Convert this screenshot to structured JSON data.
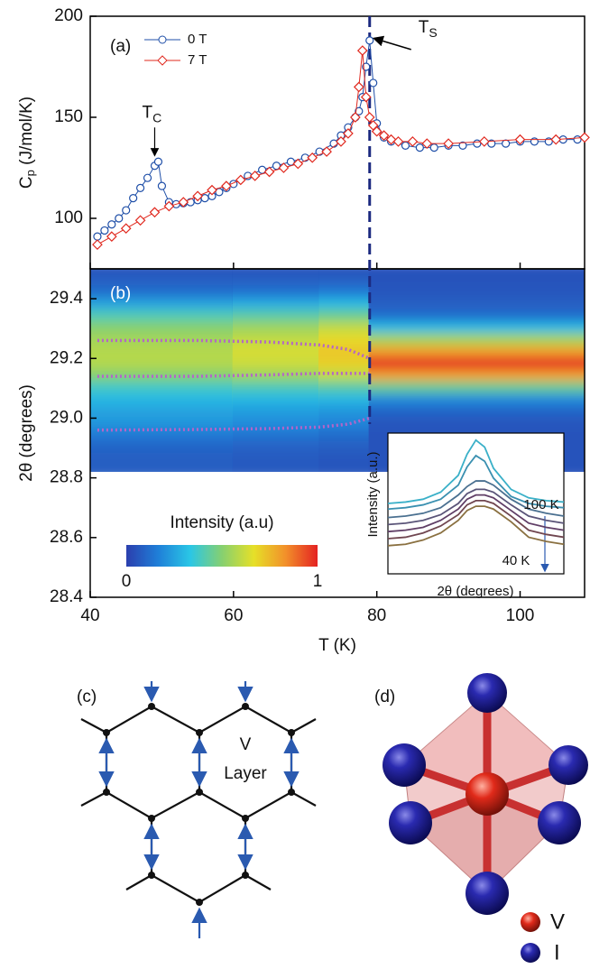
{
  "chart_data": [
    {
      "type": "line",
      "panel_label": "(a)",
      "ylabel": {
        "main": "C",
        "sub": "p",
        "rest": " (J/mol/K)"
      },
      "xlim": [
        40,
        109
      ],
      "xticks": [
        40,
        60,
        80,
        100
      ],
      "ylim": [
        75,
        200
      ],
      "yticks": [
        100,
        150,
        200
      ],
      "vline": 79,
      "annotations": [
        {
          "text": "T",
          "sub": "C",
          "x": 49,
          "y": 128
        },
        {
          "text": "T",
          "sub": "S",
          "x": 79,
          "y": 188
        }
      ],
      "series": [
        {
          "name": "0 T",
          "color": "#1f4fa8",
          "marker": "circle",
          "x": [
            41,
            42,
            43,
            44,
            45,
            46,
            47,
            48,
            49,
            49.5,
            50,
            51,
            52,
            53,
            54,
            55,
            56,
            57,
            58,
            59,
            60,
            62,
            64,
            66,
            68,
            70,
            72,
            74,
            75,
            76,
            77,
            77.5,
            78,
            78.5,
            79,
            79.5,
            80,
            81,
            82,
            84,
            86,
            88,
            90,
            92,
            94,
            96,
            98,
            100,
            102,
            104,
            106,
            108
          ],
          "values": [
            91,
            94,
            97,
            100,
            104,
            110,
            115,
            120,
            126,
            128,
            116,
            108,
            107,
            107.5,
            108,
            109,
            110,
            111,
            113,
            115,
            117,
            121,
            124,
            126,
            128,
            130,
            133,
            137,
            141,
            145,
            150,
            153,
            160,
            175,
            188,
            167,
            147,
            140,
            138,
            136,
            135,
            135,
            136,
            136,
            137,
            137,
            137,
            138,
            138,
            138,
            139,
            139
          ]
        },
        {
          "name": "7 T",
          "color": "#e0281e",
          "marker": "diamond",
          "x": [
            41,
            43,
            45,
            47,
            49,
            51,
            53,
            55,
            57,
            59,
            61,
            63,
            65,
            67,
            69,
            71,
            73,
            75,
            76,
            77,
            77.5,
            78,
            78.5,
            79,
            79.5,
            80,
            81,
            82,
            83,
            85,
            87,
            90,
            95,
            100,
            105,
            109
          ],
          "values": [
            87,
            91,
            95,
            99,
            103,
            106,
            108,
            111,
            114,
            116,
            119,
            121,
            123,
            125,
            127,
            130,
            133,
            138,
            142,
            150,
            165,
            183,
            160,
            150,
            146,
            143,
            141,
            139,
            138,
            138,
            137,
            137,
            138,
            139,
            139,
            140
          ]
        }
      ]
    },
    {
      "type": "heatmap",
      "panel_label": "(b)",
      "xlabel": "T (K)",
      "ylabel": "2θ (degrees)",
      "xlim": [
        40,
        109
      ],
      "xticks": [
        40,
        60,
        80,
        100
      ],
      "ylim": [
        28.4,
        29.5
      ],
      "yticks": [
        28.4,
        28.6,
        28.8,
        {
          "value": 29.0,
          "label": "29.0"
        },
        29.2,
        29.4
      ],
      "x_edges": [
        40,
        60,
        72,
        79,
        109
      ],
      "y": [
        29.48,
        29.44,
        29.4,
        29.36,
        29.32,
        29.28,
        29.24,
        29.2,
        29.16,
        29.12,
        29.08,
        29.04,
        29.0,
        28.96,
        28.92,
        28.88,
        28.84
      ],
      "z": [
        [
          0.05,
          0.08,
          0.12,
          0.25,
          0.4,
          0.5,
          0.55,
          0.58,
          0.58,
          0.5,
          0.38,
          0.3,
          0.25,
          0.22,
          0.15,
          0.1,
          0.08
        ],
        [
          0.05,
          0.08,
          0.13,
          0.27,
          0.42,
          0.54,
          0.6,
          0.64,
          0.62,
          0.54,
          0.4,
          0.3,
          0.24,
          0.2,
          0.14,
          0.09,
          0.07
        ],
        [
          0.05,
          0.08,
          0.15,
          0.3,
          0.45,
          0.6,
          0.68,
          0.72,
          0.7,
          0.6,
          0.42,
          0.3,
          0.22,
          0.18,
          0.12,
          0.08,
          0.06
        ],
        [
          0.05,
          0.05,
          0.06,
          0.08,
          0.12,
          0.3,
          0.55,
          0.8,
          1.0,
          0.8,
          0.45,
          0.2,
          0.1,
          0.06,
          0.05,
          0.05,
          0.05
        ]
      ],
      "colorbar": {
        "label": "Intensity (a.u)",
        "ticks": [
          0,
          1
        ]
      },
      "overlay": {
        "color": "#b565c8",
        "lines": [
          {
            "x": [
              41,
              55,
              65,
              72,
              76,
              79
            ],
            "values": [
              29.26,
              29.26,
              29.255,
              29.245,
              29.23,
              29.2
            ]
          },
          {
            "x": [
              41,
              55,
              65,
              72,
              76,
              79
            ],
            "values": [
              29.14,
              29.14,
              29.145,
              29.15,
              29.15,
              29.15
            ]
          },
          {
            "x": [
              41,
              55,
              65,
              72,
              76,
              79
            ],
            "values": [
              28.96,
              28.962,
              28.965,
              28.97,
              28.98,
              29.0
            ]
          }
        ]
      }
    },
    {
      "type": "line",
      "xlabel": "2θ (degrees)",
      "ylabel": "Intensity (a.u.)",
      "xlim": [
        0,
        10
      ],
      "ylim": [
        0,
        10
      ],
      "annotations": [
        {
          "text": "100 K"
        },
        {
          "text": "40 K"
        }
      ],
      "x": [
        0,
        1,
        2,
        3,
        4,
        4.5,
        5,
        5.5,
        6,
        7,
        8,
        9,
        10
      ],
      "series": [
        {
          "color": "#3ab0c8",
          "values": [
            5.0,
            5.1,
            5.3,
            5.8,
            7.0,
            8.5,
            9.5,
            9.0,
            7.5,
            6.0,
            5.4,
            5.2,
            5.1
          ]
        },
        {
          "color": "#3a90b0",
          "values": [
            4.6,
            4.7,
            4.9,
            5.3,
            6.3,
            7.6,
            8.4,
            8.0,
            6.8,
            5.5,
            5.0,
            4.8,
            4.7
          ]
        },
        {
          "color": "#4a7090",
          "values": [
            4.0,
            4.1,
            4.3,
            4.7,
            5.6,
            6.2,
            6.6,
            6.6,
            6.3,
            5.3,
            4.6,
            4.3,
            4.1
          ]
        },
        {
          "color": "#5a5478",
          "values": [
            3.5,
            3.6,
            3.8,
            4.2,
            5.0,
            5.7,
            6.0,
            6.0,
            5.8,
            4.9,
            4.1,
            3.8,
            3.6
          ]
        },
        {
          "color": "#603e66",
          "values": [
            3.0,
            3.1,
            3.3,
            3.8,
            4.6,
            5.3,
            5.6,
            5.6,
            5.4,
            4.5,
            3.6,
            3.3,
            3.1
          ]
        },
        {
          "color": "#704650",
          "values": [
            2.5,
            2.6,
            2.9,
            3.4,
            4.2,
            4.9,
            5.2,
            5.2,
            5.0,
            4.1,
            3.1,
            2.8,
            2.6
          ]
        },
        {
          "color": "#8a7040",
          "values": [
            2.0,
            2.1,
            2.4,
            2.9,
            3.8,
            4.5,
            4.8,
            4.8,
            4.6,
            3.7,
            2.6,
            2.3,
            2.1
          ]
        }
      ]
    }
  ],
  "panel_c": {
    "label": "(c)",
    "text": [
      "V",
      "Layer"
    ]
  },
  "panel_d": {
    "label": "(d)",
    "legend": [
      "V",
      "I"
    ]
  }
}
